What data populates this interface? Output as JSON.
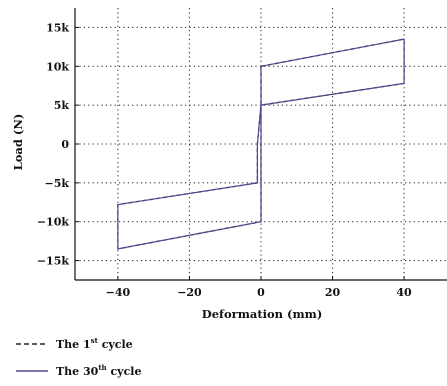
{
  "chart_data": {
    "type": "line",
    "title": "",
    "xlabel": "Deformation (mm)",
    "ylabel": "Load (N)",
    "xlim": [
      -52,
      52
    ],
    "ylim": [
      -17500,
      17500
    ],
    "x_ticks": [
      -40,
      -20,
      0,
      20,
      40
    ],
    "x_tick_labels": [
      "−40",
      "−20",
      "0",
      "20",
      "40"
    ],
    "y_ticks": [
      15000,
      10000,
      5000,
      0,
      -5000,
      -10000,
      -15000
    ],
    "y_tick_labels": [
      "15k",
      "10k",
      "5k",
      "0",
      "−5k",
      "−10k",
      "−15k"
    ],
    "grid": true,
    "legend_position": "bottom-left",
    "series": [
      {
        "name": "The 1st cycle",
        "legend_text": "The 1",
        "legend_sup": "st",
        "legend_suffix": " cycle",
        "style": "dashed",
        "color": "#222222",
        "points": [
          [
            0,
            10000
          ],
          [
            40,
            13500
          ],
          [
            40,
            7800
          ],
          [
            0,
            5000
          ],
          [
            -1,
            0
          ],
          [
            -1,
            -5000
          ],
          [
            -40,
            -7800
          ],
          [
            -40,
            -13500
          ],
          [
            0,
            -10000
          ],
          [
            0,
            0
          ],
          [
            0,
            10000
          ]
        ]
      },
      {
        "name": "The 30th cycle",
        "legend_text": "The 30",
        "legend_sup": "th",
        "legend_suffix": " cycle",
        "style": "solid",
        "color": "#4b4b8f",
        "points": [
          [
            0,
            10000
          ],
          [
            40,
            13500
          ],
          [
            40,
            7800
          ],
          [
            0,
            5000
          ],
          [
            -1,
            0
          ],
          [
            -1,
            -5000
          ],
          [
            -40,
            -7800
          ],
          [
            -40,
            -13500
          ],
          [
            0,
            -10000
          ],
          [
            0,
            0
          ],
          [
            0,
            10000
          ]
        ]
      }
    ]
  }
}
